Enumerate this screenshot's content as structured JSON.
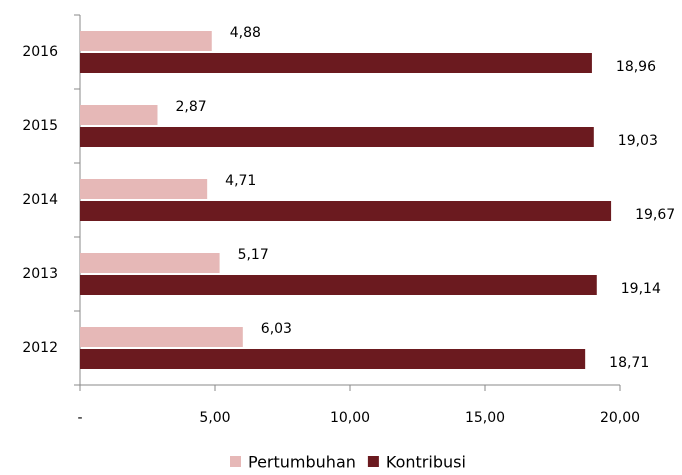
{
  "chart_data": {
    "type": "bar",
    "orientation": "horizontal",
    "categories": [
      "2016",
      "2015",
      "2014",
      "2013",
      "2012"
    ],
    "series": [
      {
        "name": "Pertumbuhan",
        "color": "#e6b8b7",
        "values": [
          4.88,
          2.87,
          4.71,
          5.17,
          6.03
        ],
        "value_labels": [
          "4,88",
          "2,87",
          "4,71",
          "5,17",
          "6,03"
        ]
      },
      {
        "name": "Kontribusi",
        "color": "#6b1a1f",
        "values": [
          18.96,
          19.03,
          19.67,
          19.14,
          18.71
        ],
        "value_labels": [
          "18,96",
          "19,03",
          "19,67",
          "19,14",
          "18,71"
        ]
      }
    ],
    "xlim": [
      0,
      20
    ],
    "xticks": [
      {
        "value": 0,
        "label": "-"
      },
      {
        "value": 5,
        "label": "5,00"
      },
      {
        "value": 10,
        "label": "10,00"
      },
      {
        "value": 15,
        "label": "15,00"
      },
      {
        "value": 20,
        "label": "20,00"
      }
    ],
    "legend": "bottom"
  }
}
